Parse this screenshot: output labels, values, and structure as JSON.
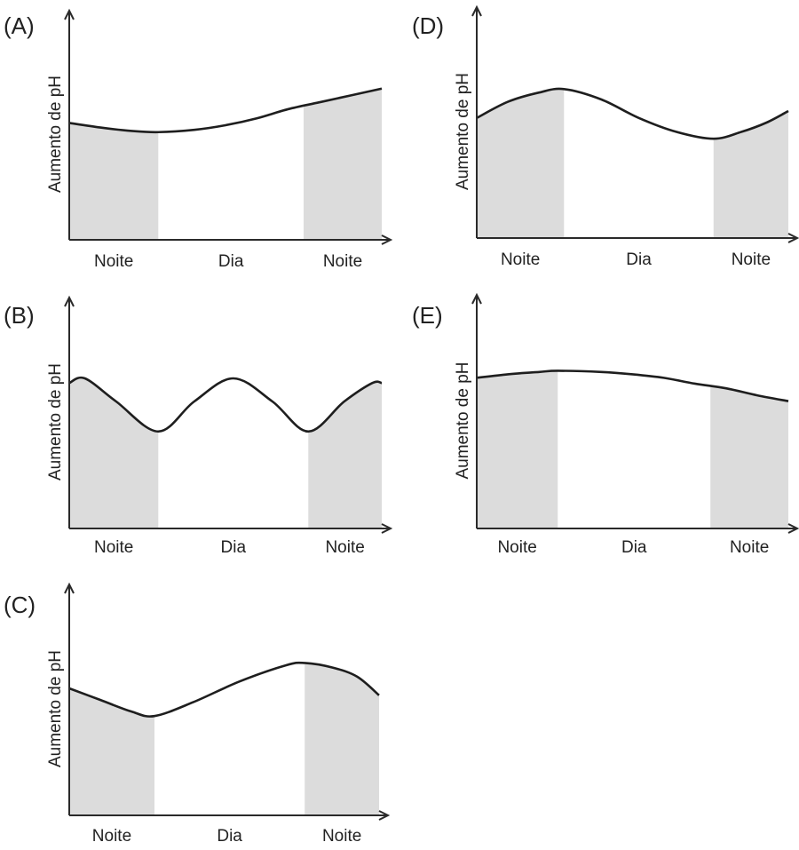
{
  "chart_data": [
    {
      "type": "line",
      "panel": "(A)",
      "ylabel": "Aumento de pH",
      "periods": [
        {
          "label": "Noite",
          "shaded": true,
          "start": 0,
          "end": 0.285
        },
        {
          "label": "Dia",
          "shaded": false,
          "start": 0.285,
          "end": 0.75
        },
        {
          "label": "Noite",
          "shaded": true,
          "start": 0.75,
          "end": 1
        }
      ],
      "x": [
        0,
        0.1,
        0.2,
        0.285,
        0.4,
        0.5,
        0.6,
        0.7,
        0.8,
        0.9,
        1
      ],
      "values": [
        0.51,
        0.49,
        0.475,
        0.47,
        0.48,
        0.5,
        0.53,
        0.57,
        0.6,
        0.63,
        0.66
      ],
      "ylim": [
        0,
        1
      ]
    },
    {
      "type": "line",
      "panel": "(B)",
      "ylabel": "Aumento de pH",
      "periods": [
        {
          "label": "Noite",
          "shaded": true,
          "start": 0,
          "end": 0.285
        },
        {
          "label": "Dia",
          "shaded": false,
          "start": 0.285,
          "end": 0.765
        },
        {
          "label": "Noite",
          "shaded": true,
          "start": 0.765,
          "end": 1
        }
      ],
      "x": [
        0,
        0.05,
        0.15,
        0.285,
        0.4,
        0.525,
        0.65,
        0.765,
        0.88,
        0.97,
        1
      ],
      "values": [
        0.63,
        0.65,
        0.55,
        0.42,
        0.55,
        0.65,
        0.55,
        0.42,
        0.55,
        0.63,
        0.63
      ],
      "ylim": [
        0,
        1
      ]
    },
    {
      "type": "line",
      "panel": "(C)",
      "ylabel": "Aumento de pH",
      "periods": [
        {
          "label": "Noite",
          "shaded": true,
          "start": 0,
          "end": 0.275
        },
        {
          "label": "Dia",
          "shaded": false,
          "start": 0.275,
          "end": 0.76
        },
        {
          "label": "Noite",
          "shaded": true,
          "start": 0.76,
          "end": 1
        }
      ],
      "x": [
        0,
        0.1,
        0.2,
        0.275,
        0.4,
        0.55,
        0.7,
        0.76,
        0.85,
        0.93,
        1
      ],
      "values": [
        0.55,
        0.5,
        0.45,
        0.43,
        0.49,
        0.58,
        0.65,
        0.66,
        0.64,
        0.6,
        0.52
      ],
      "ylim": [
        0,
        1
      ]
    },
    {
      "type": "line",
      "panel": "(D)",
      "ylabel": "Aumento de pH",
      "periods": [
        {
          "label": "Noite",
          "shaded": true,
          "start": 0,
          "end": 0.28
        },
        {
          "label": "Dia",
          "shaded": false,
          "start": 0.28,
          "end": 0.76
        },
        {
          "label": "Noite",
          "shaded": true,
          "start": 0.76,
          "end": 1
        }
      ],
      "x": [
        0,
        0.1,
        0.2,
        0.28,
        0.4,
        0.52,
        0.64,
        0.76,
        0.85,
        0.93,
        1
      ],
      "values": [
        0.52,
        0.59,
        0.63,
        0.645,
        0.6,
        0.52,
        0.46,
        0.43,
        0.46,
        0.5,
        0.55
      ],
      "ylim": [
        0,
        1
      ]
    },
    {
      "type": "line",
      "panel": "(E)",
      "ylabel": "Aumento de pH",
      "periods": [
        {
          "label": "Noite",
          "shaded": true,
          "start": 0,
          "end": 0.26
        },
        {
          "label": "Dia",
          "shaded": false,
          "start": 0.26,
          "end": 0.75
        },
        {
          "label": "Noite",
          "shaded": true,
          "start": 0.75,
          "end": 1
        }
      ],
      "x": [
        0,
        0.1,
        0.2,
        0.26,
        0.4,
        0.5,
        0.6,
        0.7,
        0.8,
        0.9,
        1
      ],
      "values": [
        0.645,
        0.66,
        0.67,
        0.675,
        0.67,
        0.66,
        0.645,
        0.62,
        0.6,
        0.57,
        0.545
      ],
      "ylim": [
        0,
        1
      ]
    }
  ]
}
